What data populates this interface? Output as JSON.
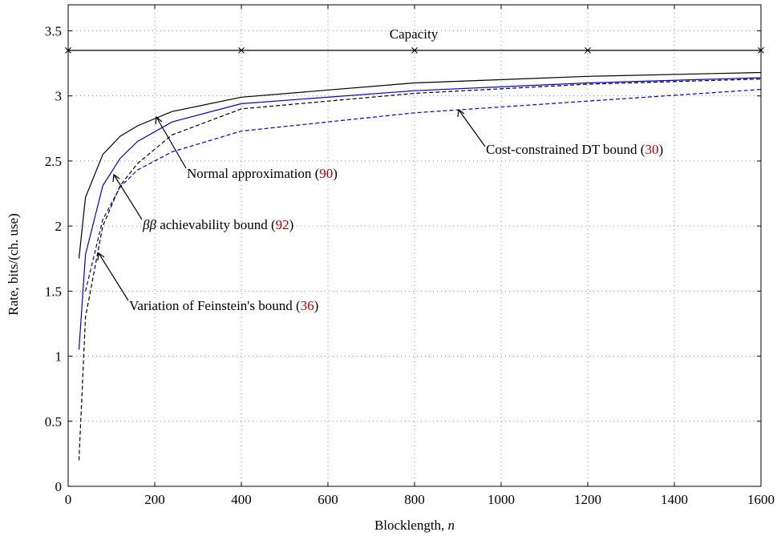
{
  "chart_data": {
    "type": "line",
    "title": "",
    "xlabel": "Blocklength, ",
    "xlabel_var": "n",
    "ylabel": "Rate, bits/(ch. use)",
    "xlim": [
      0,
      1600
    ],
    "ylim": [
      0,
      3.7
    ],
    "grid": true,
    "x_ticks": [
      0,
      200,
      400,
      600,
      800,
      1000,
      1200,
      1400,
      1600
    ],
    "x_tick_labels": [
      "0",
      "200",
      "400",
      "600",
      "800",
      "1000",
      "1200",
      "1400",
      "1600"
    ],
    "y_ticks": [
      0,
      0.5,
      1,
      1.5,
      2,
      2.5,
      3,
      3.5
    ],
    "y_tick_labels": [
      "0",
      "0.5",
      "1",
      "1.5",
      "2",
      "2.5",
      "3",
      "3.5"
    ],
    "series": [
      {
        "name": "Capacity",
        "color": "#000000",
        "style": "solid",
        "marker": "x",
        "x": [
          0,
          400,
          800,
          1200,
          1600
        ],
        "y": [
          3.35,
          3.35,
          3.35,
          3.35,
          3.35
        ]
      },
      {
        "name": "Normal approximation",
        "color": "#000000",
        "style": "solid",
        "x": [
          25,
          40,
          80,
          120,
          160,
          240,
          400,
          800,
          1200,
          1600
        ],
        "y": [
          1.75,
          2.22,
          2.55,
          2.69,
          2.77,
          2.88,
          2.99,
          3.1,
          3.15,
          3.18
        ]
      },
      {
        "name": "ββ achievability bound",
        "color": "#0000cc",
        "style": "solid",
        "x": [
          25,
          40,
          80,
          120,
          160,
          240,
          400,
          800,
          1200,
          1600
        ],
        "y": [
          1.05,
          1.78,
          2.31,
          2.52,
          2.65,
          2.8,
          2.94,
          3.04,
          3.1,
          3.14
        ]
      },
      {
        "name": "Variation of Feinstein's bound",
        "color": "#000000",
        "style": "dashed",
        "x": [
          25,
          40,
          80,
          120,
          160,
          240,
          400,
          800,
          1200,
          1600
        ],
        "y": [
          0.2,
          1.3,
          2.0,
          2.31,
          2.48,
          2.7,
          2.9,
          3.02,
          3.09,
          3.13
        ]
      },
      {
        "name": "Cost-constrained DT bound",
        "color": "#0000cc",
        "style": "dashed",
        "x": [
          40,
          80,
          120,
          160,
          240,
          400,
          800,
          1200,
          1600
        ],
        "y": [
          1.5,
          2.05,
          2.3,
          2.43,
          2.57,
          2.73,
          2.87,
          2.96,
          3.05
        ]
      }
    ],
    "annotations": [
      {
        "text": "Capacity",
        "ref": ""
      },
      {
        "text": "Normal approximation (",
        "ref": "90",
        "close": ")"
      },
      {
        "text": " achievability bound (",
        "prefix": "ββ",
        "ref": "92",
        "close": ")"
      },
      {
        "text": "Variation of Feinstein's bound (",
        "ref": "36",
        "close": ")"
      },
      {
        "text": "Cost-constrained DT bound (",
        "ref": "30",
        "close": ")"
      }
    ]
  }
}
